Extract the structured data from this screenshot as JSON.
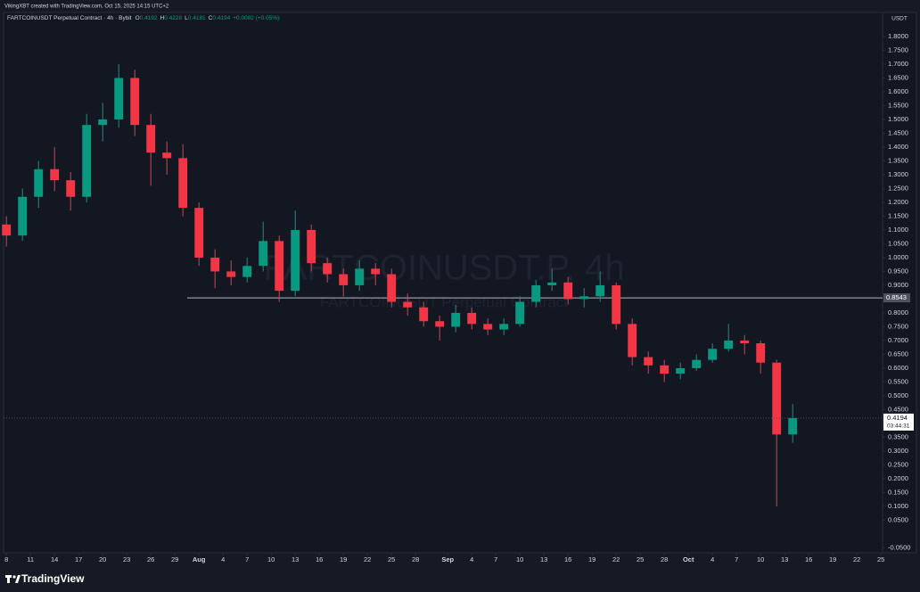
{
  "header": {
    "credit": "VikingXBT created with TradingView.com, Oct 15, 2025 14:15 UTC+2"
  },
  "legend": {
    "symbol": "FARTCOINUSDT Perpetual Contract · 4h · Bybit",
    "items": [
      {
        "label": "O",
        "value": 0.4192
      },
      {
        "label": "H",
        "value": 0.4228
      },
      {
        "label": "L",
        "value": 0.4181
      },
      {
        "label": "C",
        "value": 0.4194
      }
    ],
    "change": "+0.0002 (+0.05%)"
  },
  "watermark": {
    "title": "FARTCOINUSDT.P, 4h",
    "subtitle": "FARTCOINUSDT Perpetual Contract"
  },
  "footer": {
    "brand": "TradingView"
  },
  "chart_data": {
    "type": "candlestick",
    "y_label": "USDT",
    "up_color": "#089981",
    "down_color": "#f23645",
    "x": [
      8,
      10,
      12,
      14,
      16,
      18,
      20,
      22,
      24,
      26,
      28,
      30,
      32,
      34,
      36,
      38,
      40,
      42,
      44,
      46,
      48,
      50,
      52,
      54,
      56,
      58,
      60,
      62,
      64,
      66,
      68,
      70,
      72,
      74,
      76,
      78,
      80,
      82,
      84,
      86,
      88,
      90,
      92,
      94,
      96,
      98,
      100,
      102,
      104,
      106
    ],
    "open": [
      1.12,
      1.08,
      1.22,
      1.32,
      1.28,
      1.22,
      1.48,
      1.5,
      1.65,
      1.48,
      1.38,
      1.36,
      1.18,
      1.0,
      0.95,
      0.93,
      0.97,
      1.06,
      0.88,
      1.1,
      0.98,
      0.94,
      0.9,
      0.96,
      0.94,
      0.84,
      0.82,
      0.77,
      0.75,
      0.8,
      0.76,
      0.74,
      0.76,
      0.84,
      0.9,
      0.91,
      0.85,
      0.86,
      0.9,
      0.76,
      0.64,
      0.61,
      0.58,
      0.6,
      0.63,
      0.67,
      0.7,
      0.69,
      0.62,
      0.36
    ],
    "high": [
      1.15,
      1.25,
      1.35,
      1.4,
      1.31,
      1.52,
      1.56,
      1.7,
      1.68,
      1.52,
      1.42,
      1.41,
      1.2,
      1.03,
      0.99,
      1.0,
      1.13,
      1.08,
      1.17,
      1.12,
      1.0,
      0.96,
      0.99,
      0.98,
      0.96,
      0.87,
      0.84,
      0.79,
      0.83,
      0.82,
      0.78,
      0.78,
      0.86,
      0.92,
      0.96,
      0.93,
      0.89,
      0.95,
      0.91,
      0.78,
      0.66,
      0.63,
      0.62,
      0.65,
      0.69,
      0.76,
      0.72,
      0.7,
      0.63,
      0.47
    ],
    "low": [
      1.04,
      1.06,
      1.18,
      1.24,
      1.17,
      1.2,
      1.42,
      1.47,
      1.44,
      1.26,
      1.3,
      1.15,
      0.97,
      0.89,
      0.9,
      0.91,
      0.95,
      0.84,
      0.86,
      0.95,
      0.91,
      0.86,
      0.88,
      0.9,
      0.82,
      0.79,
      0.75,
      0.7,
      0.73,
      0.74,
      0.72,
      0.72,
      0.75,
      0.82,
      0.88,
      0.83,
      0.82,
      0.84,
      0.74,
      0.61,
      0.58,
      0.55,
      0.56,
      0.59,
      0.62,
      0.66,
      0.65,
      0.58,
      0.1,
      0.33
    ],
    "close": [
      1.08,
      1.22,
      1.32,
      1.28,
      1.22,
      1.48,
      1.5,
      1.65,
      1.48,
      1.38,
      1.36,
      1.18,
      1.0,
      0.95,
      0.93,
      0.97,
      1.06,
      0.88,
      1.1,
      0.98,
      0.94,
      0.9,
      0.96,
      0.94,
      0.84,
      0.82,
      0.77,
      0.75,
      0.8,
      0.76,
      0.74,
      0.76,
      0.84,
      0.9,
      0.91,
      0.85,
      0.86,
      0.9,
      0.76,
      0.64,
      0.61,
      0.58,
      0.6,
      0.63,
      0.67,
      0.7,
      0.69,
      0.62,
      0.36,
      0.4194
    ],
    "xlim": [
      7.2,
      117.2
    ],
    "xticks": [
      8,
      11,
      14,
      17,
      20,
      23,
      26,
      29,
      {
        "value": 32,
        "label": "Aug"
      },
      {
        "value": 35,
        "label": "4"
      },
      {
        "value": 38,
        "label": "7"
      },
      {
        "value": 41,
        "label": "10"
      },
      {
        "value": 44,
        "label": "13"
      },
      {
        "value": 47,
        "label": "16"
      },
      {
        "value": 50,
        "label": "19"
      },
      {
        "value": 53,
        "label": "22"
      },
      {
        "value": 56,
        "label": "25"
      },
      {
        "value": 59,
        "label": "28"
      },
      {
        "value": 63,
        "label": "Sep"
      },
      {
        "value": 66,
        "label": "4"
      },
      {
        "value": 69,
        "label": "7"
      },
      {
        "value": 72,
        "label": "10"
      },
      {
        "value": 75,
        "label": "13"
      },
      {
        "value": 78,
        "label": "16"
      },
      {
        "value": 81,
        "label": "19"
      },
      {
        "value": 84,
        "label": "22"
      },
      {
        "value": 87,
        "label": "25"
      },
      {
        "value": 90,
        "label": "28"
      },
      {
        "value": 93,
        "label": "Oct"
      },
      {
        "value": 96,
        "label": "4"
      },
      {
        "value": 99,
        "label": "7"
      },
      {
        "value": 102,
        "label": "10"
      },
      {
        "value": 105,
        "label": "13"
      },
      {
        "value": 108,
        "label": "16"
      },
      {
        "value": 111,
        "label": "19"
      },
      {
        "value": 114,
        "label": "22"
      },
      {
        "value": 117,
        "label": "25"
      }
    ],
    "ylim": [
      -0.068,
      1.887
    ],
    "yticks": [
      {
        "value": 1.8,
        "label": "1.8000"
      },
      {
        "value": 1.75,
        "label": "1.7500"
      },
      {
        "value": 1.7,
        "label": "1.7000"
      },
      {
        "value": 1.65,
        "label": "1.6500"
      },
      {
        "value": 1.6,
        "label": "1.6000"
      },
      {
        "value": 1.55,
        "label": "1.5500"
      },
      {
        "value": 1.5,
        "label": "1.5000"
      },
      {
        "value": 1.45,
        "label": "1.4500"
      },
      {
        "value": 1.4,
        "label": "1.4000"
      },
      {
        "value": 1.35,
        "label": "1.3500"
      },
      {
        "value": 1.3,
        "label": "1.3000"
      },
      {
        "value": 1.25,
        "label": "1.2500"
      },
      {
        "value": 1.2,
        "label": "1.2000"
      },
      {
        "value": 1.15,
        "label": "1.1500"
      },
      {
        "value": 1.1,
        "label": "1.1000"
      },
      {
        "value": 1.05,
        "label": "1.0500"
      },
      {
        "value": 1,
        "label": "1.0000"
      },
      {
        "value": 0.95,
        "label": "0.9500"
      },
      {
        "value": 0.9,
        "label": "0.9000"
      },
      {
        "value": 0.8,
        "label": "0.8000"
      },
      {
        "value": 0.75,
        "label": "0.7500"
      },
      {
        "value": 0.7,
        "label": "0.7000"
      },
      {
        "value": 0.65,
        "label": "0.6500"
      },
      {
        "value": 0.6,
        "label": "0.6000"
      },
      {
        "value": 0.55,
        "label": "0.5500"
      },
      {
        "value": 0.5,
        "label": "0.5000"
      },
      {
        "value": 0.45,
        "label": "0.4500"
      },
      {
        "value": 0.35,
        "label": "0.3500"
      },
      {
        "value": 0.3,
        "label": "0.3000"
      },
      {
        "value": 0.25,
        "label": "0.2500"
      },
      {
        "value": 0.2,
        "label": "0.2000"
      },
      {
        "value": 0.15,
        "label": "0.1500"
      },
      {
        "value": 0.1,
        "label": "0.1000"
      },
      {
        "value": 0.05,
        "label": "0.0500"
      },
      {
        "value": -0.05,
        "label": "-0.0500"
      }
    ],
    "hline": {
      "value": 0.8543,
      "color": "#b2b5be"
    },
    "last_price": {
      "value": 0.4194,
      "countdown": "03:44:31"
    }
  }
}
